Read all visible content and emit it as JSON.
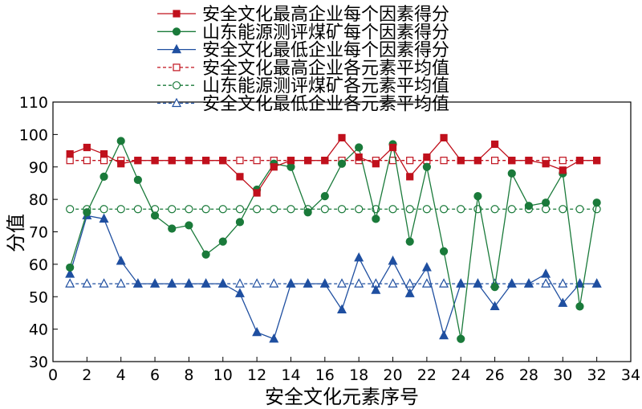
{
  "chart_data": {
    "type": "line",
    "xlabel": "安全文化元素序号",
    "ylabel": "分值",
    "xlim": [
      0,
      34
    ],
    "ylim": [
      30,
      110
    ],
    "xticks": [
      0,
      2,
      4,
      6,
      8,
      10,
      12,
      14,
      16,
      18,
      20,
      22,
      24,
      26,
      28,
      30,
      32,
      34
    ],
    "yticks": [
      30,
      40,
      50,
      60,
      70,
      80,
      90,
      100,
      110
    ],
    "grid": false,
    "legend_position": "top",
    "x": [
      1,
      2,
      3,
      4,
      5,
      6,
      7,
      8,
      9,
      10,
      11,
      12,
      13,
      14,
      15,
      16,
      17,
      18,
      19,
      20,
      21,
      22,
      23,
      24,
      25,
      26,
      27,
      28,
      29,
      30,
      31,
      32
    ],
    "series": [
      {
        "name": "安全文化最高企业每个因素得分",
        "color": "#c0101c",
        "marker": "square-filled",
        "line": "solid",
        "values": [
          94,
          96,
          94,
          91,
          92,
          92,
          92,
          92,
          92,
          92,
          87,
          82,
          90,
          92,
          92,
          92,
          99,
          93,
          91,
          96,
          87,
          93,
          99,
          92,
          92,
          97,
          92,
          92,
          91,
          89,
          92,
          92
        ]
      },
      {
        "name": "山东能源测评煤矿每个因素得分",
        "color": "#1a7a3a",
        "marker": "circle-filled",
        "line": "solid",
        "values": [
          59,
          76,
          87,
          98,
          86,
          75,
          71,
          72,
          63,
          67,
          73,
          83,
          91,
          90,
          76,
          81,
          91,
          96,
          74,
          97,
          67,
          90,
          64,
          37,
          81,
          53,
          88,
          78,
          79,
          88,
          47,
          79
        ]
      },
      {
        "name": "安全文化最低企业每个因素得分",
        "color": "#1f4fa0",
        "marker": "triangle-filled",
        "line": "solid",
        "values": [
          57,
          75,
          74,
          61,
          54,
          54,
          54,
          54,
          54,
          54,
          51,
          39,
          37,
          54,
          54,
          54,
          46,
          62,
          52,
          61,
          51,
          59,
          38,
          54,
          54,
          47,
          54,
          54,
          57,
          48,
          54,
          54
        ]
      },
      {
        "name": "安全文化最高企业各元素平均值",
        "color": "#c0101c",
        "marker": "square-open",
        "line": "dashed",
        "values": [
          92,
          92,
          92,
          92,
          92,
          92,
          92,
          92,
          92,
          92,
          92,
          92,
          92,
          92,
          92,
          92,
          92,
          92,
          92,
          92,
          92,
          92,
          92,
          92,
          92,
          92,
          92,
          92,
          92,
          92,
          92,
          92
        ]
      },
      {
        "name": "山东能源测评煤矿各元素平均值",
        "color": "#1a7a3a",
        "marker": "circle-open",
        "line": "dashed",
        "values": [
          77,
          77,
          77,
          77,
          77,
          77,
          77,
          77,
          77,
          77,
          77,
          77,
          77,
          77,
          77,
          77,
          77,
          77,
          77,
          77,
          77,
          77,
          77,
          77,
          77,
          77,
          77,
          77,
          77,
          77,
          77,
          77
        ]
      },
      {
        "name": "安全文化最低企业各元素平均值",
        "color": "#1f4fa0",
        "marker": "triangle-open",
        "line": "dashed",
        "values": [
          54,
          54,
          54,
          54,
          54,
          54,
          54,
          54,
          54,
          54,
          54,
          54,
          54,
          54,
          54,
          54,
          54,
          54,
          54,
          54,
          54,
          54,
          54,
          54,
          54,
          54,
          54,
          54,
          54,
          54,
          54,
          54
        ]
      }
    ]
  }
}
